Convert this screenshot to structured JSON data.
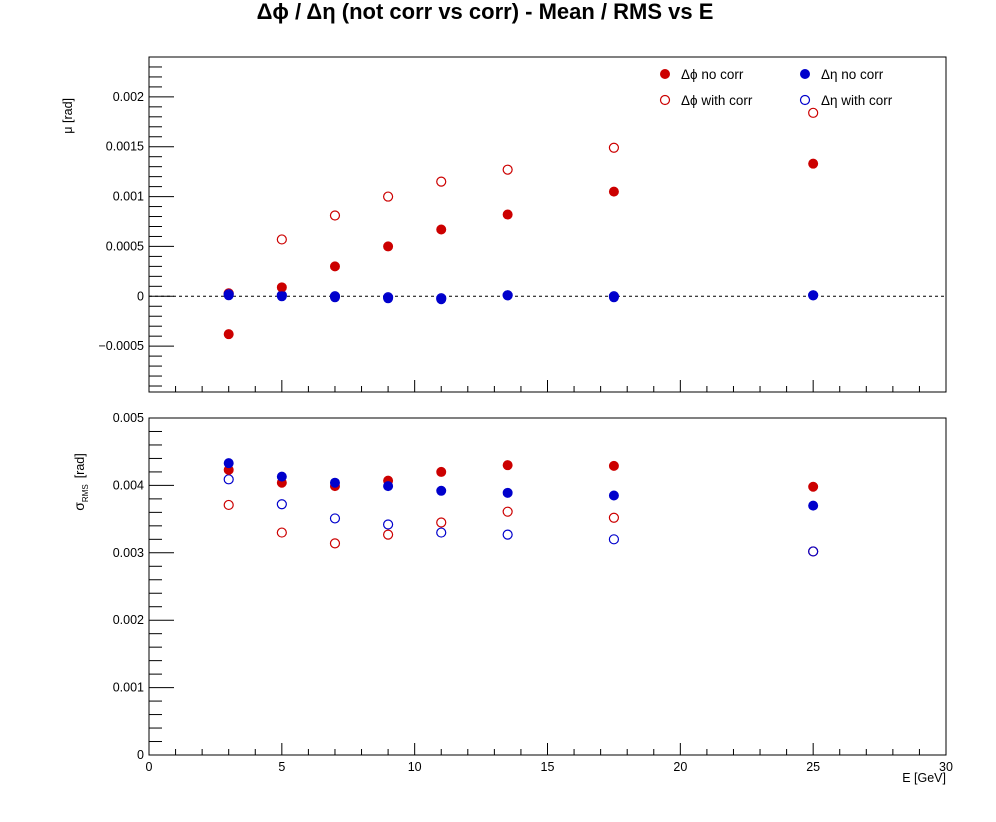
{
  "figure": {
    "title": "Δϕ / Δη  (not corr vs corr)  -  Mean / RMS vs E"
  },
  "chart_data": [
    {
      "type": "scatter",
      "panel": "top",
      "title": "",
      "xlabel": "",
      "ylabel": "μ  [rad]",
      "xlim": [
        0,
        30
      ],
      "ylim": [
        -0.00096,
        0.0024
      ],
      "y_ticks": [
        -0.0005,
        0,
        0.0005,
        0.001,
        0.0015,
        0.002
      ],
      "y_tick_labels": [
        "−0.0005",
        "0",
        "0.0005",
        "0.001",
        "0.0015",
        "0.002"
      ],
      "reference_line": {
        "y": 0,
        "style": "dashed"
      },
      "x": [
        3,
        5,
        7,
        9,
        11,
        13.5,
        17.5,
        25
      ],
      "series": [
        {
          "name": "Δϕ no corr",
          "marker": "filled",
          "color": "#cc0000",
          "values": [
            -0.00038,
            9e-05,
            0.0003,
            0.0005,
            0.00067,
            0.00082,
            0.00105,
            0.00133
          ]
        },
        {
          "name": "Δϕ with corr",
          "marker": "open",
          "color": "#cc0000",
          "values": [
            3e-05,
            0.00057,
            0.00081,
            0.001,
            0.00115,
            0.00127,
            0.00149,
            0.00184
          ]
        },
        {
          "name": "Δη no corr",
          "marker": "filled",
          "color": "#0000cc",
          "values": [
            1e-05,
            0.0,
            -1e-05,
            -2e-05,
            -3e-05,
            1e-05,
            -1e-05,
            1e-05
          ]
        },
        {
          "name": "Δη with corr",
          "marker": "open",
          "color": "#0000cc",
          "values": [
            2e-05,
            1e-05,
            0.0,
            -1e-05,
            -2e-05,
            1e-05,
            0.0,
            1e-05
          ]
        }
      ],
      "legend": {
        "position": "top-right",
        "columns": [
          [
            "Δϕ no corr",
            "Δϕ with corr"
          ],
          [
            "Δη no corr",
            "Δη with corr"
          ]
        ]
      }
    },
    {
      "type": "scatter",
      "panel": "bottom",
      "title": "",
      "xlabel": "E  [GeV]",
      "ylabel": "σ",
      "ylabel_subscript": "RMS",
      "ylabel_unit": "[rad]",
      "xlim": [
        0,
        30
      ],
      "ylim": [
        0,
        0.005
      ],
      "x_ticks": [
        0,
        5,
        10,
        15,
        20,
        25,
        30
      ],
      "x_tick_labels": [
        "0",
        "5",
        "10",
        "15",
        "20",
        "25",
        "30"
      ],
      "y_ticks": [
        0,
        0.001,
        0.002,
        0.003,
        0.004,
        0.005
      ],
      "y_tick_labels": [
        "0",
        "0.001",
        "0.002",
        "0.003",
        "0.004",
        "0.005"
      ],
      "x": [
        3,
        5,
        7,
        9,
        11,
        13.5,
        17.5,
        25
      ],
      "series": [
        {
          "name": "Δϕ no corr",
          "marker": "filled",
          "color": "#cc0000",
          "values": [
            0.00423,
            0.00404,
            0.00399,
            0.00407,
            0.0042,
            0.0043,
            0.00429,
            0.00398
          ]
        },
        {
          "name": "Δϕ with corr",
          "marker": "open",
          "color": "#cc0000",
          "values": [
            0.00371,
            0.0033,
            0.00314,
            0.00327,
            0.00345,
            0.00361,
            0.00352,
            0.00302
          ]
        },
        {
          "name": "Δη no corr",
          "marker": "filled",
          "color": "#0000cc",
          "values": [
            0.00433,
            0.00413,
            0.00404,
            0.00399,
            0.00392,
            0.00389,
            0.00385,
            0.0037
          ]
        },
        {
          "name": "Δη with corr",
          "marker": "open",
          "color": "#0000cc",
          "values": [
            0.00409,
            0.00372,
            0.00351,
            0.00342,
            0.0033,
            0.00327,
            0.0032,
            0.00302
          ]
        }
      ]
    }
  ]
}
